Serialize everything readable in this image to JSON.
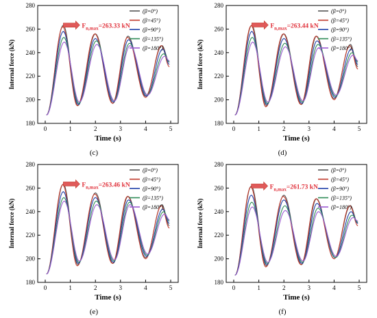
{
  "chart_data": [
    {
      "type": "line",
      "panel_label": "(c)",
      "xlabel": "Time (s)",
      "ylabel": "Internal force (kN)",
      "xlim": [
        -0.3,
        5.3
      ],
      "ylim": [
        180,
        280
      ],
      "xticks": [
        0,
        1,
        2,
        3,
        4,
        5
      ],
      "yticks": [
        180,
        200,
        220,
        240,
        260,
        280
      ],
      "annotation": {
        "text": "F",
        "sub": "n,max",
        "value": "=263.33 kN",
        "x": 0.72,
        "y": 263.33
      },
      "legend_position": "top-right",
      "series": [
        {
          "name": "(β=0°)",
          "color": "#555555",
          "t0": 0.05,
          "v0": 187,
          "peaks": [
            [
              0.72,
              263.3
            ],
            [
              2.0,
              256
            ],
            [
              3.3,
              254
            ],
            [
              4.65,
              246
            ]
          ],
          "troughs": [
            [
              1.3,
              195
            ],
            [
              2.7,
              197
            ],
            [
              4.0,
              203
            ]
          ],
          "end": [
            4.95,
            232
          ]
        },
        {
          "name": "(β=45°)",
          "color": "#c0392b",
          "t0": 0.05,
          "v0": 187,
          "peaks": [
            [
              0.7,
              262
            ],
            [
              1.98,
              256
            ],
            [
              3.28,
              253
            ],
            [
              4.63,
              246
            ]
          ],
          "troughs": [
            [
              1.28,
              195
            ],
            [
              2.68,
              197
            ],
            [
              4.0,
              202
            ]
          ],
          "end": [
            4.95,
            228
          ]
        },
        {
          "name": "(β=90°)",
          "color": "#1f3fa8",
          "t0": 0.05,
          "v0": 187,
          "peaks": [
            [
              0.72,
              258
            ],
            [
              2.0,
              252
            ],
            [
              3.32,
              251
            ],
            [
              4.68,
              243
            ]
          ],
          "troughs": [
            [
              1.32,
              196
            ],
            [
              2.72,
              198
            ],
            [
              4.04,
              203
            ]
          ],
          "end": [
            4.95,
            230
          ]
        },
        {
          "name": "(β=135°)",
          "color": "#2e8b57",
          "t0": 0.05,
          "v0": 187,
          "peaks": [
            [
              0.74,
              253
            ],
            [
              2.04,
              250
            ],
            [
              3.36,
              248
            ],
            [
              4.72,
              239
            ]
          ],
          "troughs": [
            [
              1.34,
              197
            ],
            [
              2.74,
              199
            ],
            [
              4.06,
              204
            ]
          ],
          "end": [
            4.95,
            232
          ]
        },
        {
          "name": "(β=180°)",
          "color": "#9b59d0",
          "t0": 0.05,
          "v0": 187,
          "peaks": [
            [
              0.76,
              249
            ],
            [
              2.06,
              247
            ],
            [
              3.38,
              246
            ],
            [
              4.76,
              237
            ]
          ],
          "troughs": [
            [
              1.36,
              198
            ],
            [
              2.76,
              199
            ],
            [
              4.08,
              204
            ]
          ],
          "end": [
            4.95,
            233
          ]
        }
      ]
    },
    {
      "type": "line",
      "panel_label": "(d)",
      "xlabel": "Time (s)",
      "ylabel": "Internal force (kN)",
      "xlim": [
        -0.3,
        5.3
      ],
      "ylim": [
        180,
        280
      ],
      "xticks": [
        0,
        1,
        2,
        3,
        4,
        5
      ],
      "yticks": [
        180,
        200,
        220,
        240,
        260,
        280
      ],
      "annotation": {
        "text": "F",
        "sub": "n,max",
        "value": "=263.44 kN",
        "x": 0.72,
        "y": 263.44
      },
      "legend_position": "top-right",
      "series": [
        {
          "name": "(β=0°)",
          "color": "#555555",
          "t0": 0.05,
          "v0": 187,
          "peaks": [
            [
              0.72,
              263.4
            ],
            [
              2.0,
              256
            ],
            [
              3.3,
              254
            ],
            [
              4.65,
              247
            ]
          ],
          "troughs": [
            [
              1.3,
              195
            ],
            [
              2.7,
              196
            ],
            [
              4.0,
              201
            ]
          ],
          "end": [
            4.95,
            228
          ]
        },
        {
          "name": "(β=45°)",
          "color": "#c0392b",
          "t0": 0.05,
          "v0": 187,
          "peaks": [
            [
              0.7,
              263
            ],
            [
              1.98,
              256
            ],
            [
              3.28,
              254
            ],
            [
              4.63,
              246
            ]
          ],
          "troughs": [
            [
              1.28,
              194
            ],
            [
              2.68,
              196
            ],
            [
              4.0,
              200
            ]
          ],
          "end": [
            4.95,
            226
          ]
        },
        {
          "name": "(β=90°)",
          "color": "#1f3fa8",
          "t0": 0.05,
          "v0": 187,
          "peaks": [
            [
              0.72,
              258
            ],
            [
              2.0,
              252
            ],
            [
              3.32,
              250
            ],
            [
              4.68,
              243
            ]
          ],
          "troughs": [
            [
              1.32,
              196
            ],
            [
              2.72,
              197
            ],
            [
              4.04,
              202
            ]
          ],
          "end": [
            4.95,
            230
          ]
        },
        {
          "name": "(β=135°)",
          "color": "#2e8b57",
          "t0": 0.05,
          "v0": 187,
          "peaks": [
            [
              0.74,
              253
            ],
            [
              2.04,
              248
            ],
            [
              3.36,
              247
            ],
            [
              4.72,
              240
            ]
          ],
          "troughs": [
            [
              1.34,
              197
            ],
            [
              2.74,
              198
            ],
            [
              4.06,
              203
            ]
          ],
          "end": [
            4.95,
            232
          ]
        },
        {
          "name": "(β=180°)",
          "color": "#9b59d0",
          "t0": 0.05,
          "v0": 187,
          "peaks": [
            [
              0.76,
              249
            ],
            [
              2.06,
              245
            ],
            [
              3.38,
              244
            ],
            [
              4.76,
              238
            ]
          ],
          "troughs": [
            [
              1.36,
              198
            ],
            [
              2.76,
              199
            ],
            [
              4.08,
              204
            ]
          ],
          "end": [
            4.95,
            233
          ]
        }
      ]
    },
    {
      "type": "line",
      "panel_label": "(e)",
      "xlabel": "Time (s)",
      "ylabel": "Internal force (kN)",
      "xlim": [
        -0.3,
        5.3
      ],
      "ylim": [
        180,
        280
      ],
      "xticks": [
        0,
        1,
        2,
        3,
        4,
        5
      ],
      "yticks": [
        180,
        200,
        220,
        240,
        260,
        280
      ],
      "annotation": {
        "text": "F",
        "sub": "n,max",
        "value": "=263.46 kN",
        "x": 0.72,
        "y": 263.46
      },
      "legend_position": "top-right",
      "series": [
        {
          "name": "(β=0°)",
          "color": "#555555",
          "t0": 0.05,
          "v0": 187,
          "peaks": [
            [
              0.72,
              263.5
            ],
            [
              2.0,
              256
            ],
            [
              3.3,
              253
            ],
            [
              4.65,
              246
            ]
          ],
          "troughs": [
            [
              1.3,
              195
            ],
            [
              2.7,
              196
            ],
            [
              4.0,
              201
            ]
          ],
          "end": [
            4.95,
            228
          ]
        },
        {
          "name": "(β=45°)",
          "color": "#c0392b",
          "t0": 0.05,
          "v0": 187,
          "peaks": [
            [
              0.7,
              263
            ],
            [
              1.98,
              255
            ],
            [
              3.28,
              253
            ],
            [
              4.63,
              245
            ]
          ],
          "troughs": [
            [
              1.28,
              194
            ],
            [
              2.68,
              196
            ],
            [
              4.0,
              200
            ]
          ],
          "end": [
            4.95,
            226
          ]
        },
        {
          "name": "(β=90°)",
          "color": "#1f3fa8",
          "t0": 0.05,
          "v0": 187,
          "peaks": [
            [
              0.72,
              257
            ],
            [
              2.0,
              252
            ],
            [
              3.32,
              250
            ],
            [
              4.68,
              242
            ]
          ],
          "troughs": [
            [
              1.32,
              196
            ],
            [
              2.72,
              197
            ],
            [
              4.04,
              202
            ]
          ],
          "end": [
            4.95,
            230
          ]
        },
        {
          "name": "(β=135°)",
          "color": "#2e8b57",
          "t0": 0.05,
          "v0": 187,
          "peaks": [
            [
              0.74,
              252
            ],
            [
              2.04,
              249
            ],
            [
              3.36,
              248
            ],
            [
              4.72,
              240
            ]
          ],
          "troughs": [
            [
              1.34,
              197
            ],
            [
              2.74,
              198
            ],
            [
              4.06,
              203
            ]
          ],
          "end": [
            4.95,
            232
          ]
        },
        {
          "name": "(β=180°)",
          "color": "#9b59d0",
          "t0": 0.05,
          "v0": 187,
          "peaks": [
            [
              0.76,
              249
            ],
            [
              2.06,
              246
            ],
            [
              3.38,
              246
            ],
            [
              4.76,
              238
            ]
          ],
          "troughs": [
            [
              1.36,
              198
            ],
            [
              2.76,
              199
            ],
            [
              4.08,
              204
            ]
          ],
          "end": [
            4.95,
            233
          ]
        }
      ]
    },
    {
      "type": "line",
      "panel_label": "(f)",
      "xlabel": "Time (s)",
      "ylabel": "Internal force (kN)",
      "xlim": [
        -0.3,
        5.3
      ],
      "ylim": [
        180,
        280
      ],
      "xticks": [
        0,
        1,
        2,
        3,
        4,
        5
      ],
      "yticks": [
        180,
        200,
        220,
        240,
        260,
        280
      ],
      "annotation": {
        "text": "F",
        "sub": "n,max",
        "value": "=261.73 kN",
        "x": 0.7,
        "y": 261.73
      },
      "legend_position": "top-right",
      "series": [
        {
          "name": "(β=0°)",
          "color": "#555555",
          "t0": 0.05,
          "v0": 186,
          "peaks": [
            [
              0.7,
              261.7
            ],
            [
              2.0,
              254
            ],
            [
              3.3,
              251
            ],
            [
              4.65,
              245
            ]
          ],
          "troughs": [
            [
              1.3,
              194
            ],
            [
              2.7,
              195
            ],
            [
              4.0,
              200
            ]
          ],
          "end": [
            4.95,
            230
          ]
        },
        {
          "name": "(β=45°)",
          "color": "#c0392b",
          "t0": 0.05,
          "v0": 186,
          "peaks": [
            [
              0.68,
              261
            ],
            [
              1.98,
              253
            ],
            [
              3.28,
              251
            ],
            [
              4.63,
              245
            ]
          ],
          "troughs": [
            [
              1.28,
              193
            ],
            [
              2.68,
              195
            ],
            [
              4.0,
              200
            ]
          ],
          "end": [
            4.95,
            228
          ]
        },
        {
          "name": "(β=90°)",
          "color": "#1f3fa8",
          "t0": 0.05,
          "v0": 186,
          "peaks": [
            [
              0.7,
              254
            ],
            [
              2.0,
              250
            ],
            [
              3.32,
              247
            ],
            [
              4.68,
              240
            ]
          ],
          "troughs": [
            [
              1.32,
              195
            ],
            [
              2.72,
              196
            ],
            [
              4.04,
              201
            ]
          ],
          "end": [
            4.95,
            230
          ]
        },
        {
          "name": "(β=135°)",
          "color": "#2e8b57",
          "t0": 0.05,
          "v0": 186,
          "peaks": [
            [
              0.72,
              248
            ],
            [
              2.04,
              245
            ],
            [
              3.36,
              243
            ],
            [
              4.72,
              237
            ]
          ],
          "troughs": [
            [
              1.34,
              196
            ],
            [
              2.74,
              197
            ],
            [
              4.06,
              201
            ]
          ],
          "end": [
            4.95,
            231
          ]
        },
        {
          "name": "(β=180°)",
          "color": "#9b59d0",
          "t0": 0.05,
          "v0": 186,
          "peaks": [
            [
              0.74,
              244
            ],
            [
              2.06,
              241
            ],
            [
              3.38,
              240
            ],
            [
              4.76,
              235
            ]
          ],
          "troughs": [
            [
              1.36,
              197
            ],
            [
              2.76,
              198
            ],
            [
              4.08,
              202
            ]
          ],
          "end": [
            4.95,
            232
          ]
        }
      ]
    }
  ]
}
